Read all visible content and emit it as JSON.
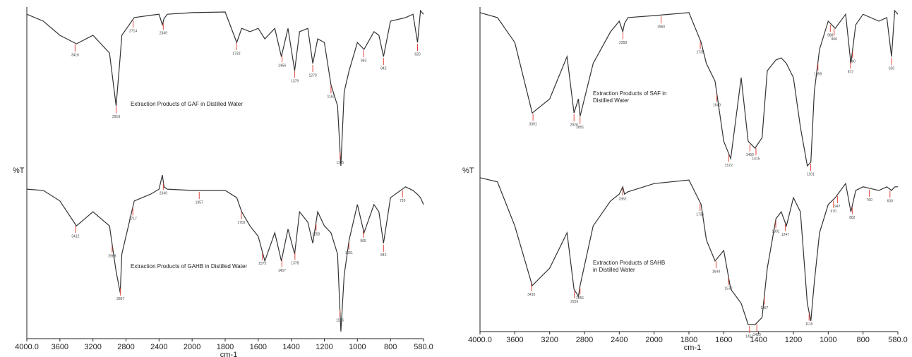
{
  "chart_data": [
    {
      "type": "line",
      "y_label": "%T",
      "x_label": "cm-1",
      "xlim": [
        4000,
        580
      ],
      "xticks": [
        {
          "value": 4000,
          "label": "4000.0"
        },
        3600,
        3200,
        2800,
        2400,
        2000,
        1800,
        1600,
        1400,
        1200,
        1000,
        800,
        {
          "value": 580,
          "label": "580.0"
        }
      ],
      "ylim": [
        0,
        100
      ],
      "x": [
        4000,
        3800,
        3600,
        3400,
        3200,
        3000,
        2920,
        2870,
        2850,
        2700,
        2500,
        2400,
        2360,
        2340,
        2300,
        2000,
        1800,
        1730,
        1700,
        1650,
        1600,
        1560,
        1500,
        1460,
        1420,
        1380,
        1350,
        1300,
        1270,
        1240,
        1200,
        1160,
        1120,
        1100,
        1080,
        1050,
        1000,
        960,
        900,
        870,
        842,
        800,
        700,
        650,
        620,
        600,
        580
      ],
      "series": [
        {
          "name": "Extraction Products of GAF in Distilled Water",
          "color": "#333333",
          "values": [
            97.8,
            95.7,
            91.4,
            88.8,
            91.4,
            86,
            69.9,
            85,
            91.4,
            96.8,
            97.5,
            97.8,
            94.6,
            96.5,
            97.8,
            98.3,
            98.5,
            89.2,
            93.5,
            92.5,
            93.5,
            90.3,
            93.5,
            84.9,
            93.5,
            80.6,
            92.5,
            93.5,
            82.8,
            90.3,
            89.2,
            76.3,
            69.9,
            51.6,
            74.2,
            80.6,
            89.2,
            87.1,
            92.5,
            91.4,
            84.9,
            95.7,
            96.8,
            97.8,
            89.2,
            98.9,
            97.8
          ],
          "peaks": [
            3416,
            2919,
            2714,
            2349,
            1732,
            1456,
            1379,
            1270,
            1160,
            1105,
            963,
            842,
            620
          ]
        },
        {
          "name": "Extraction Products of GAHB in Distilled Water",
          "color": "#333333",
          "values": [
            44.5,
            44.1,
            40.9,
            33.3,
            37.6,
            33.3,
            19.4,
            12.9,
            24.7,
            40.9,
            43,
            44.5,
            48.8,
            45.2,
            44.5,
            44.1,
            44.1,
            41.9,
            37.6,
            33.3,
            30.1,
            22.6,
            31.2,
            22.6,
            32.3,
            24.7,
            37.6,
            34.4,
            28,
            37.6,
            33.3,
            31.2,
            24.7,
            1.1,
            18.3,
            29,
            39.8,
            31.2,
            39.8,
            37.6,
            28,
            41.9,
            45.2,
            44.1,
            42.9,
            41.9,
            39.8
          ],
          "peaks": [
            3412,
            2968,
            2867,
            2717,
            2349,
            1957,
            1702,
            1575,
            1457,
            1378,
            1250,
            1106,
            1051,
            965,
            842,
            720
          ]
        }
      ]
    },
    {
      "type": "line",
      "y_label": "%T",
      "x_label": "cm-1",
      "xlim": [
        4000,
        580
      ],
      "xticks": [
        {
          "value": 4000,
          "label": "4000.0"
        },
        3600,
        3200,
        2800,
        2400,
        2000,
        1800,
        1600,
        1400,
        1200,
        1000,
        800,
        {
          "value": 580,
          "label": "580.0"
        }
      ],
      "ylim": [
        0,
        100
      ],
      "x": [
        4000,
        3800,
        3600,
        3400,
        3200,
        3000,
        2920,
        2870,
        2850,
        2700,
        2500,
        2400,
        2360,
        2340,
        2300,
        2000,
        1800,
        1730,
        1700,
        1650,
        1600,
        1560,
        1500,
        1460,
        1420,
        1380,
        1350,
        1300,
        1270,
        1240,
        1200,
        1160,
        1120,
        1100,
        1080,
        1050,
        1000,
        960,
        900,
        870,
        842,
        800,
        700,
        650,
        620,
        600,
        580
      ],
      "series": [
        {
          "name": "Extraction Products of SAF in Distilled Water",
          "color": "#333333",
          "values": [
            98.3,
            96.8,
            89.2,
            67.7,
            72,
            84.9,
            67.7,
            72,
            66.7,
            82.8,
            92.5,
            95.7,
            92.5,
            95,
            96.8,
            97.4,
            98.3,
            89.2,
            82.8,
            77.4,
            59.1,
            53.8,
            78.5,
            59.1,
            57,
            60.2,
            80.6,
            83.9,
            84.5,
            82.8,
            78.5,
            63.4,
            51.6,
            52.7,
            74.2,
            87.1,
            95.7,
            93.5,
            97.8,
            82.8,
            94.6,
            97.8,
            95.7,
            96.8,
            84.9,
            98.9,
            97.8
          ],
          "peaks": [
            3391,
            2920,
            2851,
            2358,
            1960,
            1735,
            1640,
            1572,
            1450,
            1415,
            1101,
            1059,
            988,
            966,
            872,
            860,
            620
          ]
        },
        {
          "name": "Extraction Products of SAHB in Distilled Water",
          "color": "#333333",
          "values": [
            48,
            46.7,
            33.3,
            15.1,
            20.4,
            31.2,
            14,
            11.8,
            15.1,
            33.3,
            40.9,
            43,
            45.2,
            43,
            43.7,
            46.2,
            47.3,
            39.8,
            29,
            22.6,
            25.8,
            14,
            9.7,
            3.2,
            3.2,
            5.4,
            20.4,
            35.5,
            37.6,
            33.3,
            41.9,
            37.6,
            9.7,
            4.3,
            16.1,
            31.2,
            39.8,
            41.9,
            46.2,
            37.6,
            44.1,
            45.2,
            44.1,
            45.2,
            44.1,
            45.2,
            45.2
          ],
          "peaks": [
            3410,
            2916,
            2851,
            2362,
            1736,
            1644,
            1573,
            1452,
            1410,
            1367,
            1301,
            1247,
            1110,
            970,
            947,
            862,
            760,
            630
          ]
        }
      ]
    }
  ]
}
